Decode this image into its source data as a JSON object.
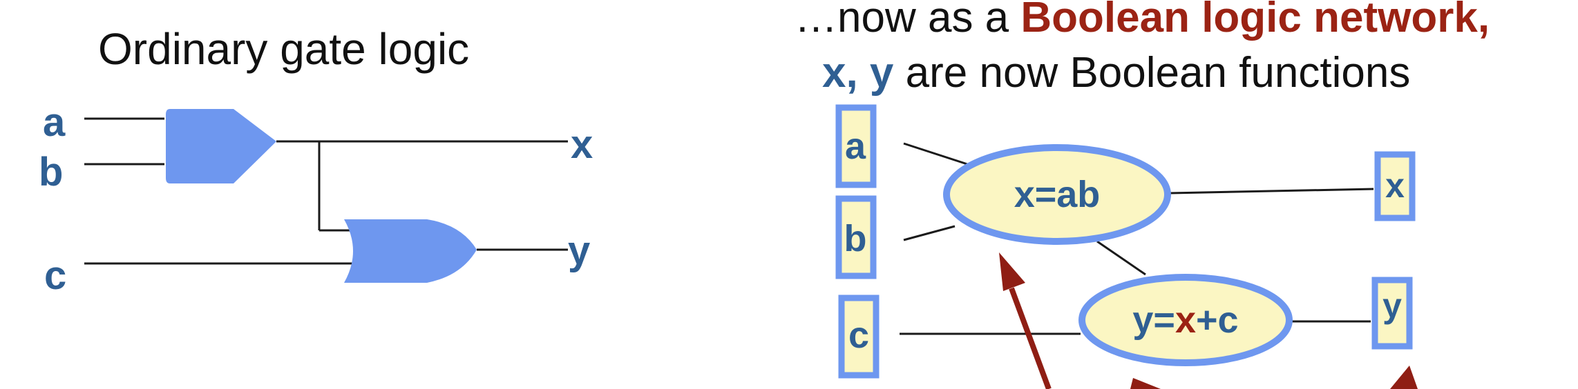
{
  "left_panel": {
    "title": "Ordinary gate logic",
    "inputs": [
      "a",
      "b",
      "c"
    ],
    "outputs": [
      "x",
      "y"
    ]
  },
  "right_panel": {
    "title_line1_prefix": "…now as a ",
    "title_line1_highlight": "Boolean logic network",
    "title_line1_suffix": ",",
    "title_line2_vars": "x, y",
    "title_line2_rest": " are now Boolean functions",
    "inputs": [
      "a",
      "b",
      "c"
    ],
    "outputs": [
      "x",
      "y"
    ],
    "node_x": "x=ab",
    "node_y_prefix": "y=",
    "node_y_var": "x",
    "node_y_suffix": "+c"
  },
  "colors": {
    "gate_fill": "#6e97ef",
    "label_blue": "#2f5f93",
    "node_fill": "#fbf6c3",
    "node_stroke": "#6e97ef",
    "arrow_red": "#8f1e14"
  }
}
